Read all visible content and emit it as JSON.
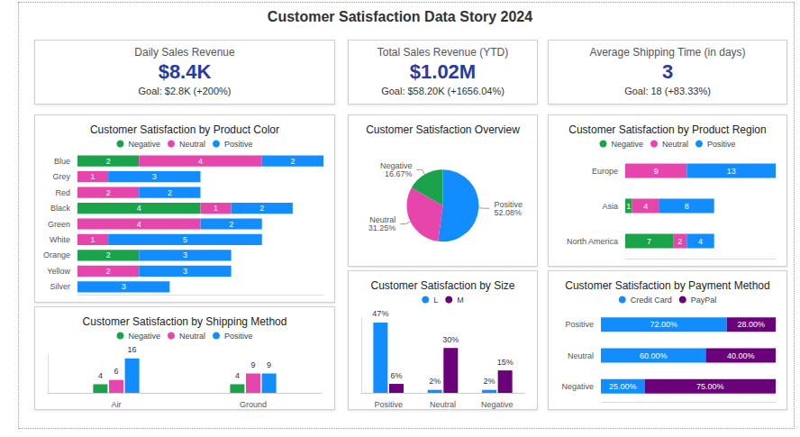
{
  "title": "Customer Satisfaction Data Story 2024",
  "kpis": [
    {
      "title": "Daily Sales Revenue",
      "value": "$8.4K",
      "goal": "Goal: $2.8K (+200%)"
    },
    {
      "title": "Total Sales Revenue (YTD)",
      "value": "$1.02M",
      "goal": "Goal: $58.20K (+1656.04%)"
    },
    {
      "title": "Average Shipping Time (in days)",
      "value": "3",
      "goal": "Goal: 18 (+83.33%)"
    }
  ],
  "chart_data": [
    {
      "type": "bar",
      "title": "Customer Satisfaction by Product Color",
      "orientation": "horizontal",
      "stacked": true,
      "data_labels": true,
      "tick_labels": "y",
      "legend": "top",
      "grid": false,
      "categories": [
        "Blue",
        "Grey",
        "Red",
        "Black",
        "Green",
        "White",
        "Orange",
        "Yellow",
        "Silver"
      ],
      "xlim": [
        0,
        8
      ],
      "series": [
        {
          "name": "Negative",
          "color": "#1aa34a",
          "values": [
            2,
            null,
            null,
            4,
            null,
            null,
            2,
            null,
            null
          ]
        },
        {
          "name": "Neutral",
          "color": "#e645ab",
          "values": [
            4,
            1,
            2,
            1,
            4,
            1,
            null,
            2,
            null
          ]
        },
        {
          "name": "Positive",
          "color": "#118dff",
          "values": [
            2,
            3,
            2,
            2,
            2,
            5,
            3,
            3,
            3
          ]
        }
      ]
    },
    {
      "type": "bar",
      "title": "Customer Satisfaction by Shipping Method",
      "data_labels": true,
      "tick_labels": "x",
      "legend": "top",
      "grid": false,
      "categories": [
        "Air",
        "Ground"
      ],
      "ylim": [
        0,
        18
      ],
      "series": [
        {
          "name": "Negative",
          "color": "#1aa34a",
          "values": [
            4,
            4
          ]
        },
        {
          "name": "Neutral",
          "color": "#e645ab",
          "values": [
            6,
            9
          ]
        },
        {
          "name": "Positive",
          "color": "#118dff",
          "values": [
            16,
            9
          ]
        }
      ]
    },
    {
      "type": "pie",
      "title": "Customer Satisfaction Overview",
      "data_labels": true,
      "categories": [
        "Positive",
        "Neutral",
        "Negative"
      ],
      "values": [
        52.08,
        31.25,
        16.67
      ],
      "value_labels": [
        "52.08%",
        "31.25%",
        "16.67%"
      ],
      "colors": [
        "#118dff",
        "#e645ab",
        "#1aa34a"
      ]
    },
    {
      "type": "bar",
      "title": "Customer Satisfaction by Size",
      "data_labels": true,
      "tick_labels": "x",
      "legend": "top",
      "grid": false,
      "categories": [
        "Positive",
        "Neutral",
        "Negative"
      ],
      "ylim": [
        0,
        50
      ],
      "series": [
        {
          "name": "L",
          "color": "#118dff",
          "values": [
            47,
            2,
            2
          ],
          "value_labels": [
            "47%",
            "2%",
            "2%"
          ]
        },
        {
          "name": "M",
          "color": "#6b007b",
          "values": [
            6,
            30,
            15
          ],
          "value_labels": [
            "6%",
            "30%",
            "15%"
          ]
        }
      ]
    },
    {
      "type": "bar",
      "title": "Customer Satisfaction by Product Region",
      "orientation": "horizontal",
      "stacked": true,
      "data_labels": true,
      "tick_labels": "y",
      "legend": "top",
      "grid": false,
      "categories": [
        "Europe",
        "Asia",
        "North America"
      ],
      "xlim": [
        0,
        22
      ],
      "series": [
        {
          "name": "Negative",
          "color": "#1aa34a",
          "values": [
            null,
            1,
            7
          ]
        },
        {
          "name": "Neutral",
          "color": "#e645ab",
          "values": [
            9,
            4,
            2
          ]
        },
        {
          "name": "Positive",
          "color": "#118dff",
          "values": [
            13,
            8,
            4
          ]
        }
      ]
    },
    {
      "type": "bar",
      "title": "Customer Satisfaction by Payment Method",
      "orientation": "horizontal",
      "stacked": true,
      "data_labels": true,
      "tick_labels": "y",
      "legend": "top",
      "grid": false,
      "categories": [
        "Positive",
        "Neutral",
        "Negative"
      ],
      "xlim": [
        0,
        100
      ],
      "series": [
        {
          "name": "Credit Card",
          "color": "#118dff",
          "values": [
            72,
            60,
            25
          ],
          "value_labels": [
            "72.00%",
            "60.00%",
            "25.00%"
          ]
        },
        {
          "name": "PayPal",
          "color": "#6b007b",
          "values": [
            28,
            40,
            75
          ],
          "value_labels": [
            "28.00%",
            "40.00%",
            "75.00%"
          ]
        }
      ]
    }
  ]
}
